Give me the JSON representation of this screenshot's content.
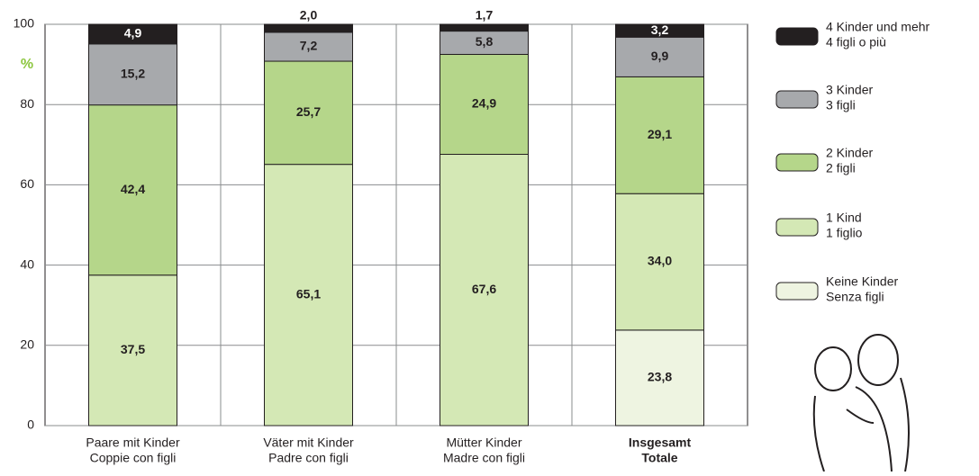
{
  "chart_data": {
    "type": "stacked-bar",
    "y_unit_label": "%",
    "categories": [
      [
        "Paare mit Kinder",
        "Coppie con figli"
      ],
      [
        "Väter mit Kinder",
        "Padre con figli"
      ],
      [
        "Mütter Kinder",
        "Madre con figli"
      ],
      [
        "Insgesamt",
        "Totale"
      ]
    ],
    "series": [
      {
        "name": [
          "Keine Kinder",
          "Senza figli"
        ],
        "color": "#eef4e1",
        "values": [
          null,
          null,
          null,
          23.8
        ],
        "value_labels": [
          null,
          null,
          null,
          "23,8"
        ]
      },
      {
        "name": [
          "1 Kind",
          "1 figlio"
        ],
        "color": "#d4e8b5",
        "values": [
          37.5,
          65.1,
          67.6,
          34.0
        ],
        "value_labels": [
          "37,5",
          "65,1",
          "67,6",
          "34,0"
        ]
      },
      {
        "name": [
          "2 Kinder",
          "2 figli"
        ],
        "color": "#b5d68a",
        "values": [
          42.4,
          25.7,
          24.9,
          29.1
        ],
        "value_labels": [
          "42,4",
          "25,7",
          "24,9",
          "29,1"
        ]
      },
      {
        "name": [
          "3 Kinder",
          "3 figli"
        ],
        "color": "#a7a9ac",
        "values": [
          15.2,
          7.2,
          5.8,
          9.9
        ],
        "value_labels": [
          "15,2",
          "7,2",
          "5,8",
          "9,9"
        ]
      },
      {
        "name": [
          "4 Kinder und mehr",
          "4 figli o più"
        ],
        "color": "#231f20",
        "values": [
          4.9,
          2.0,
          1.7,
          3.2
        ],
        "value_labels": [
          "4,9",
          "2,0",
          "1,7",
          "3,2"
        ]
      }
    ],
    "ylim": [
      0,
      100
    ],
    "yticks": [
      0,
      20,
      40,
      60,
      80,
      100
    ],
    "grid": true
  }
}
